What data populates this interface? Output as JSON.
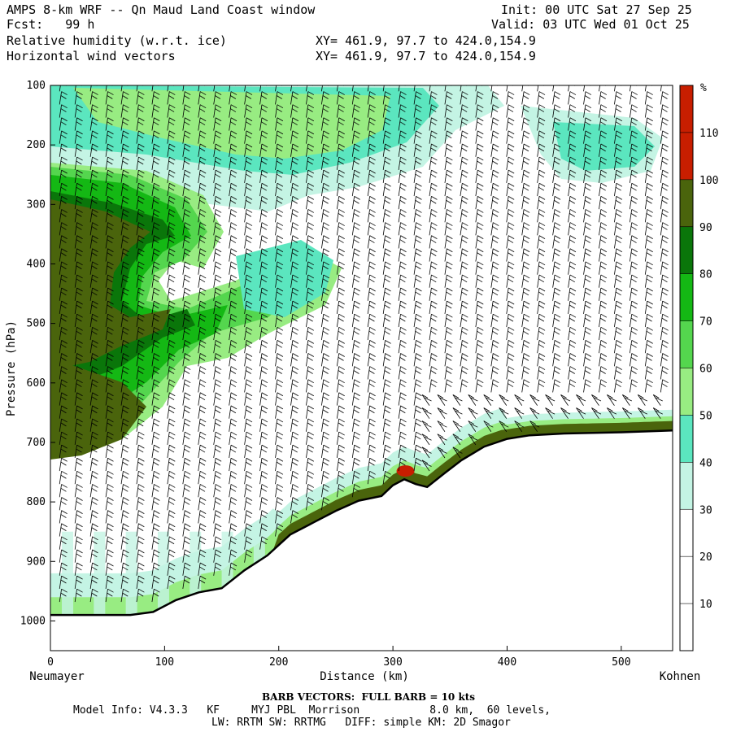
{
  "header": {
    "title_left": "AMPS 8-km WRF -- Qn Maud Land Coast window",
    "fcst": "Fcst:   99 h",
    "init": "Init: 00 UTC Sat 27 Sep 25",
    "valid": "Valid: 03 UTC Wed 01 Oct 25",
    "field1": "Relative humidity (w.r.t. ice)",
    "field2": "Horizontal wind vectors",
    "xy1": "XY= 461.9, 97.7 to 424.0,154.9",
    "xy2": "XY= 461.9, 97.7 to 424.0,154.9"
  },
  "chart_data": {
    "type": "heatmap",
    "xlabel": "Distance (km)",
    "ylabel": "Pressure (hPa)",
    "x_ticks": [
      0,
      100,
      200,
      300,
      400,
      500
    ],
    "y_ticks": [
      100,
      200,
      300,
      400,
      500,
      600,
      700,
      800,
      900,
      1000
    ],
    "xlim": [
      0,
      545
    ],
    "ylim": [
      1050,
      100
    ],
    "start_label": "Neumayer",
    "end_label": "Kohnen",
    "colorbar": {
      "unit": "%",
      "levels": [
        10,
        20,
        30,
        40,
        50,
        60,
        70,
        80,
        90,
        100,
        110
      ],
      "colors": [
        "#ffffff",
        "#ffffff",
        "#ffffff",
        "#c4f4e4",
        "#5be6bf",
        "#98ec82",
        "#54d64e",
        "#14b814",
        "#0a760a",
        "#4a640c",
        "#c81e00"
      ]
    },
    "terrain": [
      [
        0,
        990
      ],
      [
        40,
        990
      ],
      [
        70,
        990
      ],
      [
        90,
        985
      ],
      [
        110,
        965
      ],
      [
        130,
        952
      ],
      [
        150,
        945
      ],
      [
        170,
        915
      ],
      [
        190,
        890
      ],
      [
        210,
        855
      ],
      [
        230,
        835
      ],
      [
        250,
        815
      ],
      [
        270,
        798
      ],
      [
        290,
        790
      ],
      [
        300,
        772
      ],
      [
        310,
        762
      ],
      [
        320,
        770
      ],
      [
        330,
        775
      ],
      [
        345,
        752
      ],
      [
        360,
        730
      ],
      [
        380,
        707
      ],
      [
        400,
        694
      ],
      [
        420,
        688
      ],
      [
        450,
        685
      ],
      [
        500,
        683
      ],
      [
        545,
        680
      ]
    ],
    "surface_rh_layer": [
      {
        "x": [
          0,
          545
        ],
        "rh_level": "40"
      }
    ]
  },
  "footer": {
    "barb": "BARB VECTORS:  FULL BARB = 10 kts",
    "model_info": "Model Info: V4.3.3   KF     MYJ PBL  Morrison           8.0 km,  60 levels,",
    "physics": "LW: RRTM SW: RRTMG   DIFF: simple KM: 2D Smagor"
  },
  "colors": {
    "accent_red": "#c81e00",
    "dark_olive": "#4a640c"
  }
}
